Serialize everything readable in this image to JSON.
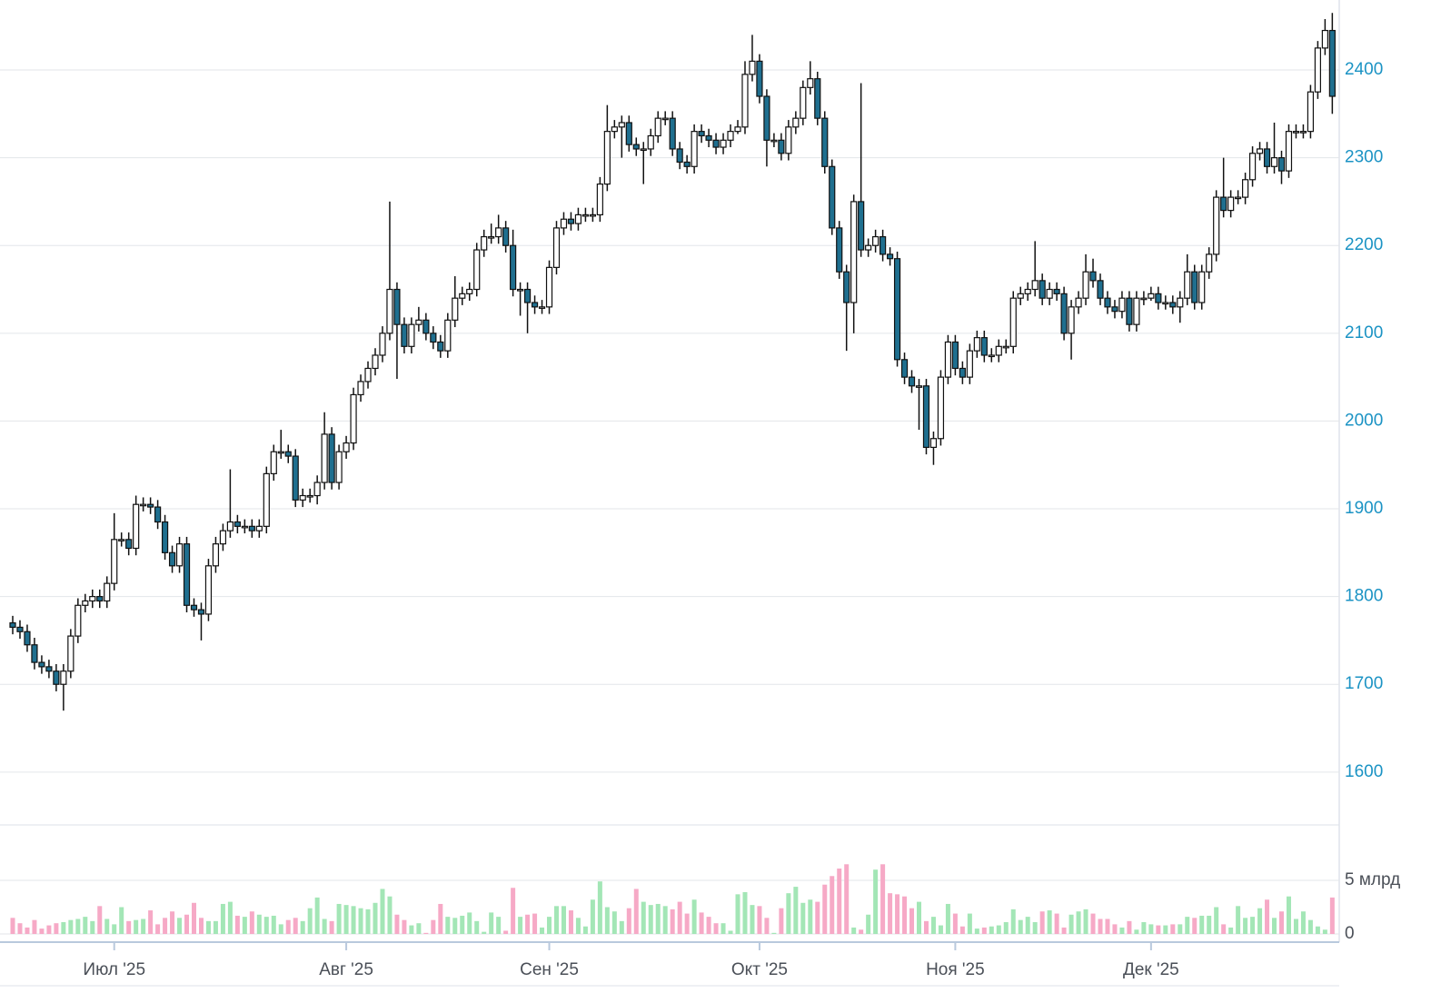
{
  "chart_data": {
    "type": "candlestick",
    "categories": [
      null,
      null,
      null,
      null,
      null,
      null,
      null,
      null,
      null,
      null,
      null,
      null,
      null,
      null,
      "Июл '25",
      null,
      null,
      null,
      null,
      null,
      null,
      null,
      null,
      null,
      null,
      null,
      null,
      null,
      null,
      null,
      null,
      null,
      null,
      null,
      null,
      null,
      null,
      null,
      null,
      null,
      null,
      null,
      null,
      null,
      null,
      null,
      "Авг '25",
      null,
      null,
      null,
      null,
      null,
      null,
      null,
      null,
      null,
      null,
      null,
      null,
      null,
      null,
      null,
      null,
      null,
      null,
      null,
      null,
      null,
      null,
      null,
      null,
      null,
      null,
      null,
      "Сен '25",
      null,
      null,
      null,
      null,
      null,
      null,
      null,
      null,
      null,
      null,
      null,
      null,
      null,
      null,
      null,
      null,
      null,
      null,
      null,
      null,
      null,
      null,
      null,
      null,
      null,
      null,
      null,
      null,
      "Окт '25",
      null,
      null,
      null,
      null,
      null,
      null,
      null,
      null,
      null,
      null,
      null,
      null,
      null,
      null,
      null,
      null,
      null,
      null,
      null,
      null,
      null,
      null,
      null,
      null,
      null,
      null,
      "Ноя '25",
      null,
      null,
      null,
      null,
      null,
      null,
      null,
      null,
      null,
      null,
      null,
      null,
      null,
      null,
      null,
      null,
      null,
      null,
      null,
      null,
      null,
      null,
      null,
      null,
      null,
      null,
      "Дек '25",
      null,
      null,
      null,
      null,
      null,
      null,
      null,
      null,
      null,
      null,
      null,
      null,
      null,
      null,
      null,
      null,
      null,
      null,
      null,
      null,
      null,
      null,
      null,
      null,
      null
    ],
    "open": [
      1770,
      1765,
      1760,
      1745,
      1725,
      1720,
      1715,
      1700,
      1715,
      1755,
      1790,
      1795,
      1800,
      1795,
      1815,
      1865,
      1865,
      1855,
      1905,
      1905,
      1902,
      1885,
      1850,
      1835,
      1860,
      1790,
      1785,
      1780,
      1835,
      1860,
      1875,
      1885,
      1880,
      1880,
      1875,
      1880,
      1940,
      1965,
      1965,
      1960,
      1910,
      1915,
      1915,
      1930,
      1985,
      1930,
      1965,
      1975,
      2030,
      2045,
      2060,
      2075,
      2100,
      2150,
      2110,
      2085,
      2110,
      2115,
      2100,
      2090,
      2080,
      2115,
      2140,
      2145,
      2150,
      2195,
      2210,
      2210,
      2220,
      2200,
      2150,
      2150,
      2135,
      2130,
      2130,
      2175,
      2220,
      2230,
      2225,
      2235,
      2235,
      2235,
      2270,
      2330,
      2335,
      2340,
      2315,
      2310,
      2310,
      2325,
      2345,
      2345,
      2310,
      2295,
      2290,
      2330,
      2325,
      2320,
      2312,
      2320,
      2330,
      2335,
      2395,
      2410,
      2370,
      2320,
      2320,
      2305,
      2335,
      2345,
      2380,
      2390,
      2345,
      2290,
      2220,
      2170,
      2135,
      2250,
      2195,
      2200,
      2210,
      2190,
      2185,
      2070,
      2050,
      2040,
      2040,
      1970,
      1980,
      2050,
      2090,
      2060,
      2050,
      2080,
      2095,
      2075,
      2075,
      2085,
      2085,
      2140,
      2145,
      2150,
      2160,
      2140,
      2150,
      2145,
      2100,
      2130,
      2140,
      2170,
      2160,
      2140,
      2130,
      2125,
      2140,
      2110,
      2140,
      2140,
      2145,
      2135,
      2135,
      2130,
      2140,
      2170,
      2135,
      2170,
      2190,
      2255,
      2240,
      2255,
      2255,
      2275,
      2305,
      2310,
      2290,
      2300,
      2285,
      2330,
      2330,
      2330,
      2375,
      2425,
      2445
    ],
    "high": [
      1778,
      1773,
      1768,
      1753,
      1733,
      1728,
      1723,
      1723,
      1763,
      1798,
      1803,
      1808,
      1808,
      1823,
      1895,
      1873,
      1873,
      1915,
      1913,
      1913,
      1910,
      1893,
      1858,
      1868,
      1868,
      1798,
      1793,
      1843,
      1868,
      1883,
      1945,
      1893,
      1888,
      1888,
      1888,
      1948,
      1973,
      1990,
      1973,
      1968,
      1923,
      1923,
      1938,
      2010,
      1993,
      1973,
      1983,
      2038,
      2053,
      2068,
      2083,
      2108,
      2250,
      2158,
      2118,
      2118,
      2130,
      2123,
      2108,
      2098,
      2123,
      2165,
      2153,
      2158,
      2203,
      2218,
      2225,
      2235,
      2228,
      2218,
      2158,
      2158,
      2143,
      2138,
      2183,
      2228,
      2238,
      2238,
      2243,
      2243,
      2243,
      2278,
      2360,
      2343,
      2348,
      2348,
      2323,
      2318,
      2333,
      2353,
      2353,
      2353,
      2318,
      2303,
      2338,
      2338,
      2333,
      2328,
      2328,
      2338,
      2343,
      2410,
      2440,
      2418,
      2378,
      2328,
      2328,
      2343,
      2353,
      2388,
      2410,
      2398,
      2353,
      2298,
      2228,
      2178,
      2258,
      2385,
      2208,
      2218,
      2218,
      2198,
      2193,
      2078,
      2058,
      2048,
      2048,
      1988,
      2058,
      2098,
      2098,
      2068,
      2088,
      2103,
      2103,
      2083,
      2093,
      2093,
      2148,
      2153,
      2158,
      2205,
      2168,
      2158,
      2158,
      2153,
      2138,
      2148,
      2190,
      2185,
      2168,
      2148,
      2138,
      2148,
      2148,
      2148,
      2148,
      2153,
      2153,
      2143,
      2143,
      2148,
      2190,
      2178,
      2178,
      2198,
      2263,
      2300,
      2263,
      2263,
      2283,
      2313,
      2318,
      2318,
      2340,
      2308,
      2338,
      2338,
      2338,
      2383,
      2433,
      2458,
      2465
    ],
    "low": [
      1757,
      1752,
      1737,
      1717,
      1712,
      1707,
      1692,
      1670,
      1707,
      1747,
      1782,
      1787,
      1787,
      1787,
      1807,
      1857,
      1847,
      1847,
      1897,
      1894,
      1877,
      1842,
      1827,
      1827,
      1782,
      1777,
      1750,
      1772,
      1827,
      1852,
      1867,
      1872,
      1872,
      1867,
      1867,
      1872,
      1932,
      1957,
      1952,
      1902,
      1902,
      1907,
      1905,
      1922,
      1922,
      1922,
      1957,
      1967,
      2022,
      2037,
      2052,
      2067,
      2092,
      2048,
      2077,
      2077,
      2102,
      2092,
      2082,
      2072,
      2072,
      2107,
      2132,
      2137,
      2142,
      2187,
      2202,
      2202,
      2192,
      2142,
      2120,
      2100,
      2122,
      2122,
      2122,
      2167,
      2212,
      2217,
      2217,
      2227,
      2227,
      2227,
      2262,
      2322,
      2300,
      2307,
      2302,
      2270,
      2302,
      2317,
      2337,
      2302,
      2287,
      2282,
      2282,
      2317,
      2312,
      2304,
      2304,
      2312,
      2327,
      2327,
      2387,
      2362,
      2290,
      2312,
      2297,
      2297,
      2327,
      2337,
      2372,
      2337,
      2282,
      2212,
      2162,
      2080,
      2100,
      2187,
      2187,
      2192,
      2182,
      2177,
      2062,
      2042,
      2032,
      1990,
      1962,
      1950,
      1972,
      2042,
      2052,
      2042,
      2042,
      2072,
      2067,
      2067,
      2067,
      2077,
      2077,
      2132,
      2137,
      2142,
      2132,
      2132,
      2137,
      2092,
      2070,
      2122,
      2132,
      2152,
      2132,
      2122,
      2117,
      2117,
      2102,
      2102,
      2132,
      2137,
      2127,
      2127,
      2122,
      2112,
      2132,
      2127,
      2127,
      2162,
      2182,
      2232,
      2232,
      2247,
      2247,
      2267,
      2297,
      2282,
      2282,
      2270,
      2277,
      2322,
      2322,
      2322,
      2367,
      2417,
      2350
    ],
    "close": [
      1765,
      1760,
      1745,
      1725,
      1720,
      1715,
      1700,
      1715,
      1755,
      1790,
      1795,
      1800,
      1795,
      1815,
      1865,
      1865,
      1855,
      1905,
      1905,
      1902,
      1885,
      1850,
      1835,
      1860,
      1790,
      1785,
      1780,
      1835,
      1860,
      1875,
      1885,
      1880,
      1880,
      1875,
      1880,
      1940,
      1965,
      1965,
      1960,
      1910,
      1915,
      1915,
      1930,
      1985,
      1930,
      1965,
      1975,
      2030,
      2045,
      2060,
      2075,
      2100,
      2150,
      2110,
      2085,
      2110,
      2115,
      2100,
      2090,
      2080,
      2115,
      2140,
      2145,
      2150,
      2195,
      2210,
      2210,
      2220,
      2200,
      2150,
      2150,
      2135,
      2130,
      2130,
      2175,
      2220,
      2230,
      2225,
      2235,
      2235,
      2235,
      2270,
      2330,
      2335,
      2340,
      2315,
      2310,
      2310,
      2325,
      2345,
      2345,
      2310,
      2295,
      2290,
      2330,
      2325,
      2320,
      2312,
      2320,
      2330,
      2335,
      2395,
      2410,
      2370,
      2320,
      2320,
      2305,
      2335,
      2345,
      2380,
      2390,
      2345,
      2290,
      2220,
      2170,
      2135,
      2250,
      2195,
      2200,
      2210,
      2190,
      2185,
      2070,
      2050,
      2040,
      2040,
      1970,
      1980,
      2050,
      2090,
      2060,
      2050,
      2080,
      2095,
      2075,
      2075,
      2085,
      2085,
      2140,
      2145,
      2150,
      2160,
      2140,
      2150,
      2145,
      2100,
      2130,
      2140,
      2170,
      2160,
      2140,
      2130,
      2125,
      2140,
      2110,
      2140,
      2140,
      2145,
      2135,
      2135,
      2130,
      2140,
      2170,
      2135,
      2170,
      2190,
      2255,
      2240,
      2255,
      2255,
      2275,
      2305,
      2310,
      2290,
      2300,
      2285,
      2330,
      2330,
      2330,
      2375,
      2425,
      2445,
      2370
    ],
    "volume": [
      1.5,
      1.0,
      0.6,
      1.3,
      0.5,
      0.8,
      1.0,
      1.1,
      1.3,
      1.4,
      1.6,
      1.2,
      2.6,
      1.4,
      0.9,
      2.5,
      1.2,
      1.3,
      1.4,
      2.2,
      0.9,
      1.5,
      2.1,
      1.5,
      1.8,
      2.9,
      1.5,
      1.2,
      1.2,
      2.8,
      3.0,
      1.7,
      1.6,
      2.1,
      1.8,
      1.6,
      1.7,
      0.9,
      1.3,
      1.5,
      1.2,
      2.4,
      3.4,
      1.4,
      1.2,
      2.8,
      2.7,
      2.6,
      2.4,
      2.3,
      2.9,
      4.2,
      3.5,
      1.8,
      1.3,
      0.8,
      1.0,
      0.1,
      1.3,
      2.8,
      1.6,
      1.5,
      1.7,
      2.0,
      1.2,
      0.2,
      2.0,
      1.6,
      0.3,
      4.3,
      1.6,
      1.8,
      1.9,
      0.6,
      1.6,
      2.6,
      2.6,
      2.2,
      1.5,
      0.7,
      3.2,
      4.9,
      2.5,
      2.1,
      1.2,
      2.4,
      4.2,
      3.0,
      2.7,
      2.8,
      2.6,
      2.3,
      3.0,
      1.9,
      3.2,
      2.0,
      1.6,
      1.0,
      1.0,
      0.3,
      3.7,
      3.9,
      2.7,
      2.6,
      1.5,
      0.1,
      2.4,
      3.8,
      4.4,
      2.9,
      3.2,
      3.0,
      4.6,
      5.4,
      6.1,
      6.5,
      0.6,
      0.4,
      1.8,
      6.0,
      6.5,
      3.8,
      3.7,
      3.5,
      2.4,
      3.0,
      1.2,
      1.6,
      0.8,
      2.8,
      1.9,
      0.7,
      1.9,
      0.5,
      0.6,
      0.7,
      0.8,
      1.1,
      2.3,
      1.3,
      1.6,
      1.1,
      2.1,
      2.2,
      1.9,
      0.6,
      1.8,
      2.1,
      2.3,
      1.9,
      1.4,
      1.4,
      0.9,
      0.6,
      1.2,
      0.4,
      1.1,
      0.9,
      0.8,
      0.8,
      0.9,
      0.9,
      1.6,
      1.5,
      1.7,
      1.7,
      2.5,
      0.9,
      0.6,
      2.6,
      1.5,
      1.6,
      2.4,
      3.2,
      1.5,
      2.1,
      3.5,
      1.4,
      2.1,
      1.3,
      0.7,
      0.4,
      3.4
    ],
    "ylim": [
      1570,
      2470
    ],
    "yticks": [
      1600,
      1700,
      1800,
      1900,
      2000,
      2100,
      2200,
      2300,
      2400
    ],
    "volume_lim": [
      0,
      10
    ],
    "volume_ticks": [
      0,
      {
        "value": 5,
        "label": "5 млрд"
      }
    ],
    "grid": true,
    "up_color": "#ffffff",
    "down_color": "#1f6f8f",
    "volume_up_color": "#a3e6b6",
    "volume_down_color": "#f6a9c6"
  }
}
